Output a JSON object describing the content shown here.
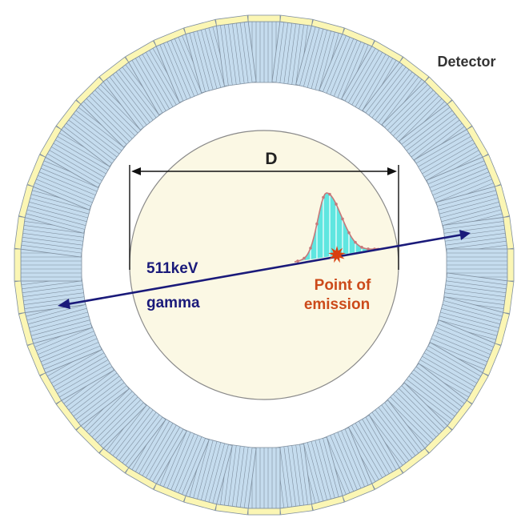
{
  "labels": {
    "detector": "Detector",
    "diameter": "D",
    "energy_line1": "511keV",
    "energy_line2": "gamma",
    "emission_line1": "Point of",
    "emission_line2": "emission"
  },
  "detector_ring": {
    "module_count": 48,
    "crystals_per_module": 8
  },
  "colors": {
    "crystal_fill": "#c5dcee",
    "crystal_edge": "#7f8f9f",
    "pmt_fill": "#fbf6b4",
    "phantom_fill": "#fbf8e4",
    "phantom_edge": "#8a8a8a",
    "gamma_line": "#1a1a7a",
    "label_dark": "#333333",
    "label_blue": "#1a1a7a",
    "label_orange": "#cc4a1a",
    "distribution_fill": "#5fe6e0",
    "distribution_curve": "#c8787a",
    "star": "#d94010"
  }
}
